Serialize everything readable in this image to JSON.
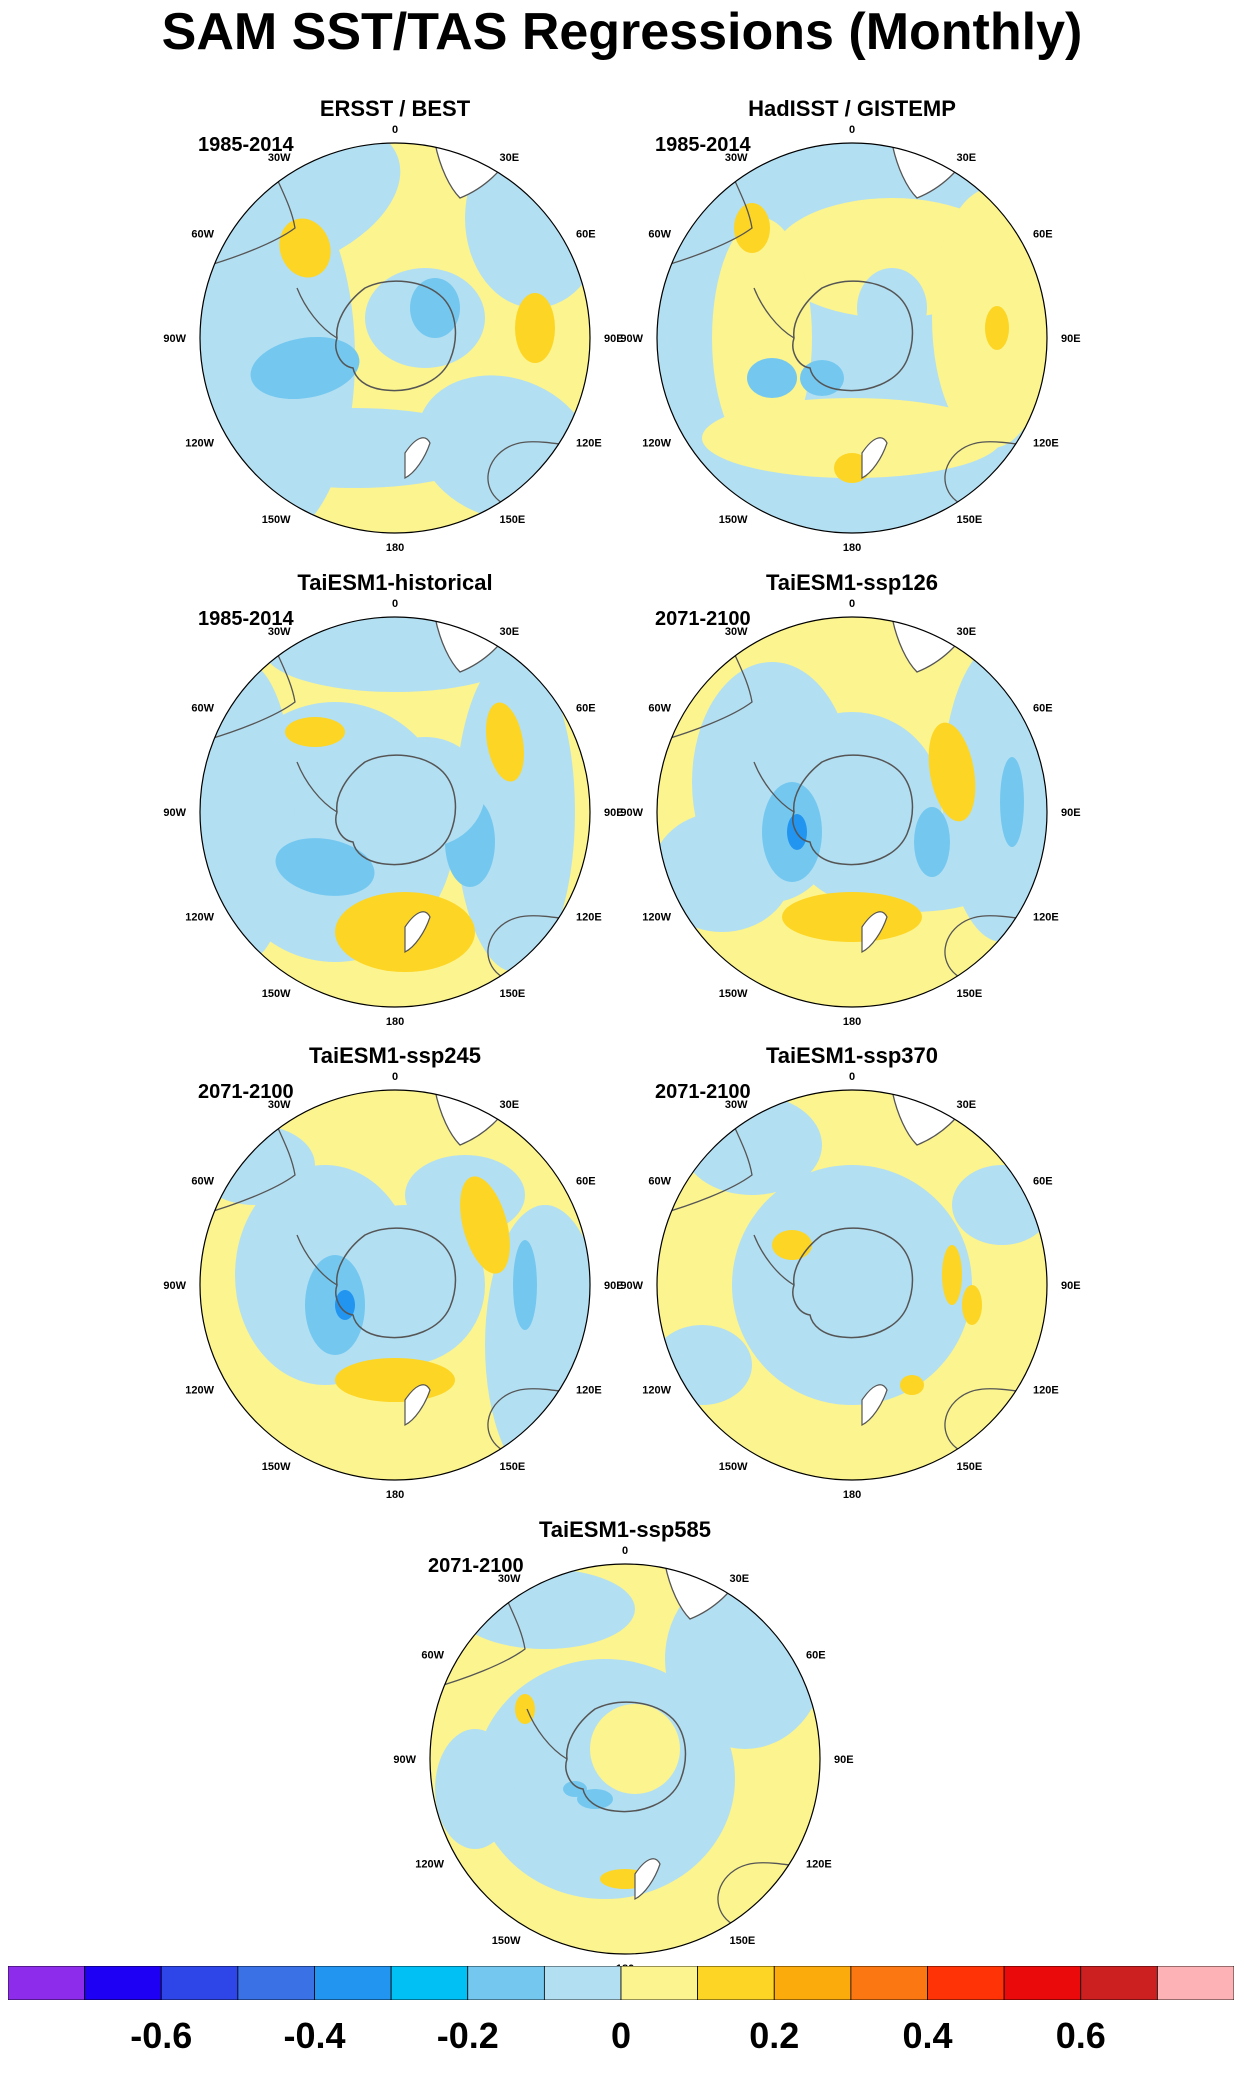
{
  "title": "SAM SST/TAS Regressions (Monthly)",
  "lon_labels": [
    "0",
    "30E",
    "60E",
    "90E",
    "120E",
    "150E",
    "180",
    "150W",
    "120W",
    "90W",
    "60W",
    "30W"
  ],
  "panels": [
    {
      "title": "ERSST / BEST",
      "period": "1985-2014"
    },
    {
      "title": "HadISST / GISTEMP",
      "period": "1985-2014"
    },
    {
      "title": "TaiESM1-historical",
      "period": "1985-2014"
    },
    {
      "title": "TaiESM1-ssp126",
      "period": "2071-2100"
    },
    {
      "title": "TaiESM1-ssp245",
      "period": "2071-2100"
    },
    {
      "title": "TaiESM1-ssp370",
      "period": "2071-2100"
    },
    {
      "title": "TaiESM1-ssp585",
      "period": "2071-2100"
    }
  ],
  "colorbar": {
    "colors": [
      "#8e2ceb",
      "#1e00f5",
      "#2e45e8",
      "#3a72e6",
      "#2295f0",
      "#00c0f4",
      "#74c8f0",
      "#b3dff2",
      "#fbf48f",
      "#fdd524",
      "#fcab0c",
      "#fa7712",
      "#ff3306",
      "#ea0a0b",
      "#cc2020",
      "#fdb3b5"
    ],
    "tick_labels": [
      "-0.6",
      "-0.4",
      "-0.2",
      "0",
      "0.2",
      "0.4",
      "0.6"
    ],
    "tick_values": [
      -0.6,
      -0.4,
      -0.2,
      0,
      0.2,
      0.4,
      0.6
    ]
  },
  "map_colors": {
    "negative_weak": "#b3dff2",
    "negative_mid": "#74c8f0",
    "negative_strong": "#2295f0",
    "positive_weak": "#fbf48f",
    "positive_mid": "#fdd524",
    "land": "#ffffff",
    "coast": "#555555"
  }
}
